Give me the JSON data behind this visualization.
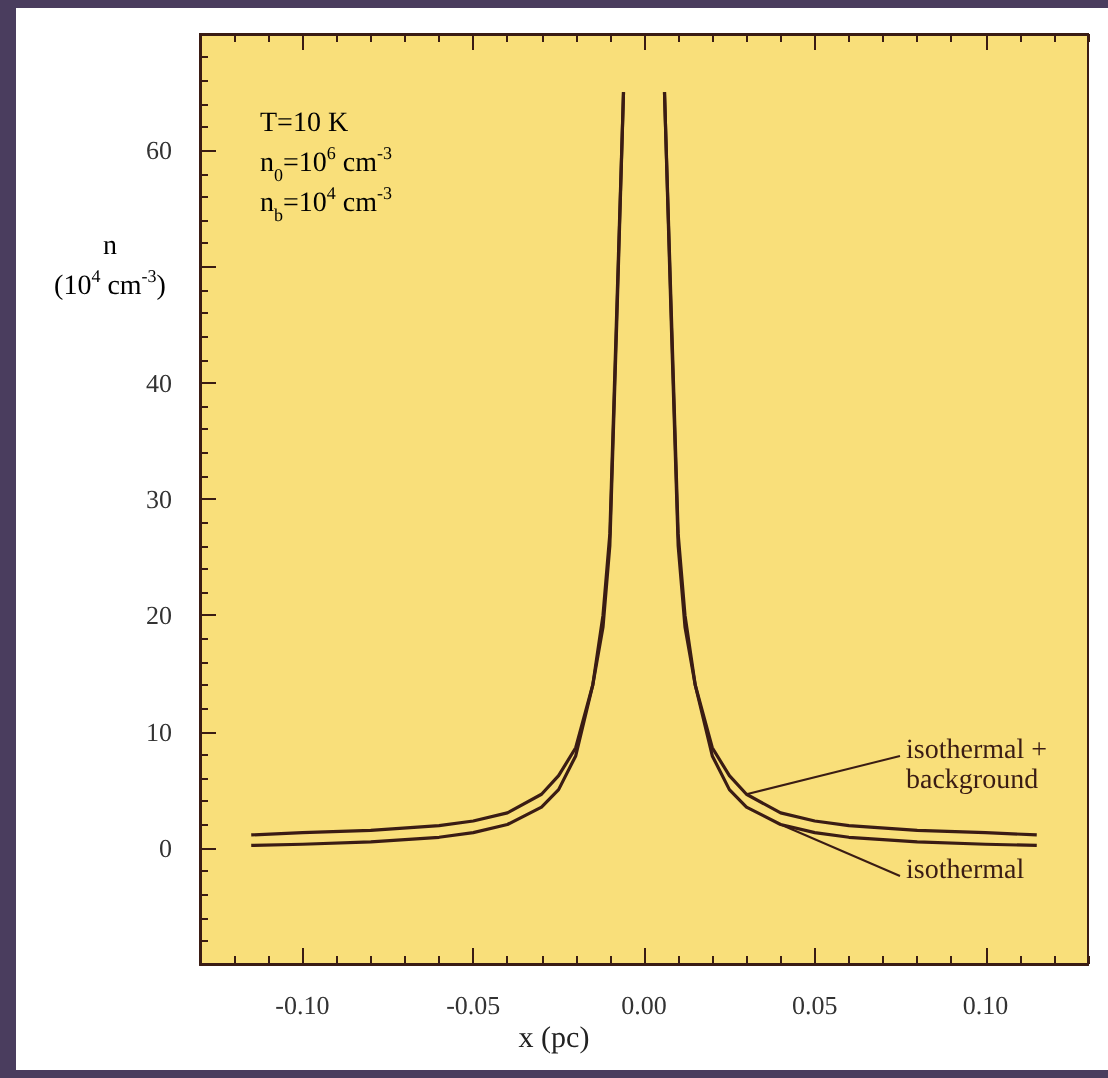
{
  "chart_data": {
    "type": "line",
    "xlabel": "x (pc)",
    "ylabel": "n (10$^{4}$ cm$^{-3}$)",
    "annotations": [
      "T=10 K",
      "n$_{0}$=10$^{6}$ cm$^{-3}$",
      "n$_{b}$=10$^{4}$ cm$^{-3}$"
    ],
    "series": [
      {
        "name": "isothermal + background",
        "color": "#3a1c14",
        "x": [
          -0.115,
          -0.1,
          -0.08,
          -0.06,
          -0.05,
          -0.04,
          -0.03,
          -0.025,
          -0.02,
          -0.015,
          -0.012,
          -0.01,
          -0.008,
          -0.006,
          0,
          0.006,
          0.008,
          0.01,
          0.012,
          0.015,
          0.02,
          0.025,
          0.03,
          0.04,
          0.05,
          0.06,
          0.08,
          0.1,
          0.115
        ],
        "values": [
          1.1,
          1.3,
          1.5,
          1.9,
          2.3,
          3,
          4.6,
          6.2,
          8.6,
          14,
          20,
          27,
          46,
          65,
          null,
          65,
          46,
          27,
          20,
          14,
          8.6,
          6.2,
          4.6,
          3,
          2.3,
          1.9,
          1.5,
          1.3,
          1.1
        ]
      },
      {
        "name": "isothermal",
        "color": "#3a1c14",
        "x": [
          -0.115,
          -0.1,
          -0.08,
          -0.06,
          -0.05,
          -0.04,
          -0.03,
          -0.025,
          -0.02,
          -0.015,
          -0.012,
          -0.01,
          -0.008,
          -0.006,
          0,
          0.006,
          0.008,
          0.01,
          0.012,
          0.015,
          0.02,
          0.025,
          0.03,
          0.04,
          0.05,
          0.06,
          0.08,
          0.1,
          0.115
        ],
        "values": [
          0.2,
          0.3,
          0.5,
          0.9,
          1.3,
          2,
          3.5,
          5,
          7.9,
          14,
          19,
          26,
          45,
          65,
          null,
          65,
          45,
          26,
          19,
          14,
          7.9,
          5,
          3.5,
          2,
          1.3,
          0.9,
          0.5,
          0.3,
          0.2
        ]
      }
    ],
    "xlim": [
      -0.13,
      0.13
    ],
    "xticks": [
      {
        "value": -0.1,
        "label": "-0.10"
      },
      -0.05,
      {
        "value": 0,
        "label": "0.00"
      },
      0.05,
      {
        "value": 0.1,
        "label": "0.10"
      }
    ],
    "ylim": [
      -10,
      70
    ],
    "yticks": [
      0,
      10,
      20,
      30,
      {
        "value": 50,
        "label": null
      },
      40,
      60
    ],
    "grid": false,
    "legend": false,
    "marker": "none",
    "line_style": "solid"
  }
}
